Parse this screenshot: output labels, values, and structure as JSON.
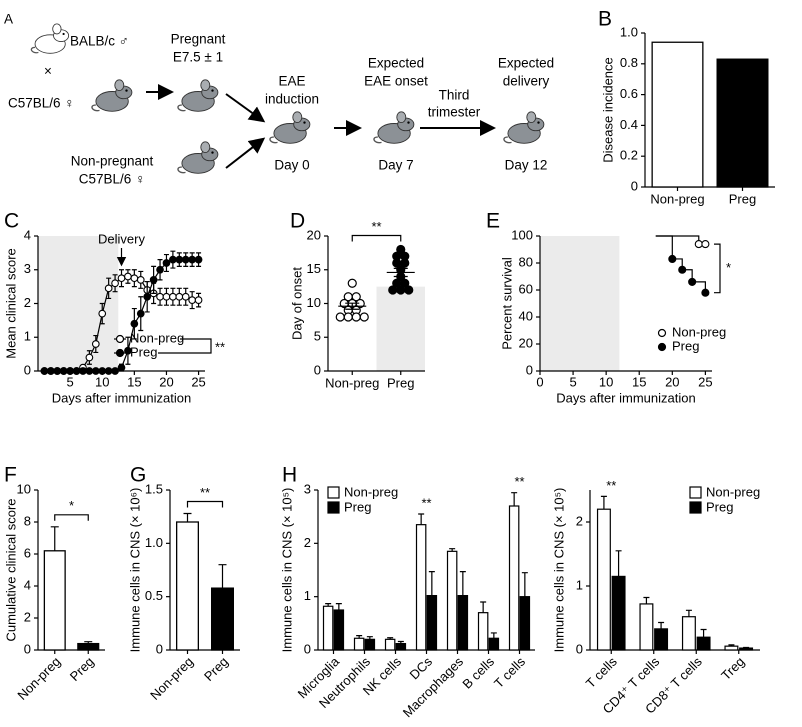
{
  "diagram": {
    "panel": "A",
    "balb": "BALB/c ♂",
    "cross": "×",
    "c57": "C57BL/6 ♀",
    "pregnant": [
      "Pregnant",
      "E7.5 ± 1"
    ],
    "nonpregnant": [
      "Non-pregnant",
      "C57BL/6 ♀"
    ],
    "induction": [
      "EAE",
      "induction"
    ],
    "day0": "Day 0",
    "onset": [
      "Expected",
      "EAE onset"
    ],
    "day7": "Day 7",
    "trimester": [
      "Third",
      "trimester"
    ],
    "delivery": [
      "Expected",
      "delivery"
    ],
    "day12": "Day 12"
  },
  "chart_data": [
    {
      "type": "bar",
      "panel": "B",
      "ylabel": "Disease incidence",
      "categories": [
        "Non-preg",
        "Preg"
      ],
      "values": [
        0.94,
        0.83
      ],
      "colors": [
        "#ffffff",
        "#000000"
      ],
      "ylim": [
        0,
        1
      ],
      "yticks": [
        0,
        0.2,
        0.4,
        0.6,
        0.8,
        {
          "value": 1,
          "label": "1.0"
        }
      ]
    },
    {
      "type": "line",
      "panel": "C",
      "ylabel": "Mean clinical score",
      "xlabel": "Days after immunization",
      "x": [
        1,
        2,
        3,
        4,
        5,
        6,
        7,
        8,
        9,
        10,
        11,
        12,
        13,
        14,
        15,
        16,
        17,
        18,
        19,
        20,
        21,
        22,
        23,
        24,
        25
      ],
      "series": [
        {
          "name": "Non-preg",
          "color": "#ffffff",
          "values": [
            0,
            0,
            0,
            0,
            0,
            0,
            0.1,
            0.4,
            0.8,
            1.7,
            2.45,
            2.6,
            2.75,
            2.8,
            2.75,
            2.7,
            2.4,
            2.3,
            2.2,
            2.2,
            2.2,
            2.2,
            2.2,
            2.1,
            2.1
          ],
          "errors": [
            0,
            0,
            0,
            0,
            0,
            0,
            0.05,
            0.2,
            0.25,
            0.3,
            0.3,
            0.25,
            0.25,
            0.2,
            0.25,
            0.25,
            0.25,
            0.3,
            0.25,
            0.25,
            0.25,
            0.25,
            0.25,
            0.25,
            0.2
          ]
        },
        {
          "name": "Preg",
          "color": "#000000",
          "values": [
            0,
            0,
            0,
            0,
            0,
            0,
            0,
            0,
            0,
            0,
            0,
            0,
            0.1,
            0.6,
            1.4,
            1.7,
            2.2,
            2.7,
            3.0,
            3.2,
            3.3,
            3.3,
            3.3,
            3.3,
            3.3
          ],
          "errors": [
            0,
            0,
            0,
            0,
            0,
            0,
            0,
            0,
            0,
            0,
            0,
            0,
            0.1,
            0.4,
            0.45,
            0.5,
            0.45,
            0.4,
            0.3,
            0.25,
            0.25,
            0.2,
            0.2,
            0.2,
            0.2
          ]
        }
      ],
      "xlim": [
        0,
        26
      ],
      "xticks": [
        5,
        10,
        15,
        20,
        25
      ],
      "ylim": [
        0,
        4
      ],
      "yticks": [
        0,
        1,
        2,
        3,
        4
      ],
      "shade_xlim": [
        0,
        12.5
      ],
      "annotation": {
        "text": "Delivery",
        "x": 13
      },
      "legend": "lower right",
      "significance": "**"
    },
    {
      "type": "dot",
      "panel": "D",
      "ylabel": "Day of onset",
      "categories": [
        "Non-preg",
        "Preg"
      ],
      "groups": [
        {
          "color": "#ffffff",
          "values": [
            13,
            11,
            11,
            10,
            10,
            10,
            9,
            9,
            8,
            8,
            8,
            8
          ],
          "mean": 9.6,
          "error": 0.45
        },
        {
          "color": "#000000",
          "values": [
            18,
            17,
            17,
            16,
            16,
            15,
            14,
            13,
            13,
            12,
            12,
            12
          ],
          "mean": 14.6,
          "error": 0.6
        }
      ],
      "ylim": [
        0,
        20
      ],
      "yticks": [
        0,
        5,
        10,
        15,
        20
      ],
      "shade_ylim": [
        0,
        12.5
      ],
      "significance": "**"
    },
    {
      "type": "step",
      "panel": "E",
      "ylabel": "Percent survival",
      "xlabel": "Days after immunization",
      "series": [
        {
          "name": "Non-preg",
          "color": "#ffffff",
          "x": [
            17.5,
            24,
            25
          ],
          "values": [
            100,
            94,
            94
          ]
        },
        {
          "name": "Preg",
          "color": "#000000",
          "x": [
            17.5,
            20,
            21.5,
            23,
            25
          ],
          "values": [
            100,
            83,
            75,
            66,
            58
          ]
        }
      ],
      "xlim": [
        0,
        26
      ],
      "xticks": [
        0,
        5,
        10,
        15,
        20,
        25
      ],
      "ylim": [
        0,
        100
      ],
      "yticks": [
        0,
        20,
        40,
        60,
        80,
        100
      ],
      "shade_xlim": [
        0,
        12
      ],
      "legend": "lower right",
      "significance": "*"
    },
    {
      "type": "bar",
      "panel": "F",
      "ylabel": "Cumulative clinical score",
      "categories": [
        "Non-preg",
        "Preg"
      ],
      "values": [
        6.2,
        0.4
      ],
      "errors": [
        1.5,
        0.12
      ],
      "colors": [
        "#ffffff",
        "#000000"
      ],
      "ylim": [
        0,
        10
      ],
      "yticks": [
        0,
        2,
        4,
        6,
        8,
        10
      ],
      "significance": "*"
    },
    {
      "type": "bar",
      "panel": "G",
      "ylabel": "Immune cells in CNS (× 10⁶)",
      "categories": [
        "Non-preg",
        "Preg"
      ],
      "values": [
        1.2,
        0.58
      ],
      "errors": [
        0.08,
        0.22
      ],
      "colors": [
        "#ffffff",
        "#000000"
      ],
      "ylim": [
        0,
        1.5
      ],
      "yticks": [
        0,
        0.5,
        {
          "value": 1,
          "label": "1.0"
        },
        1.5
      ],
      "significance": "**"
    },
    {
      "type": "grouped_bar",
      "panel": "H",
      "ylabel": "Immune cells in CNS (× 10⁵)",
      "categories": [
        "Microglia",
        "Neutrophils",
        "NK cells",
        "DCs",
        "Macrophages",
        "B cells",
        "T cells"
      ],
      "series": [
        {
          "name": "Non-preg",
          "color": "#ffffff",
          "values": [
            0.82,
            0.22,
            0.2,
            2.35,
            1.85,
            0.7,
            2.7
          ],
          "errors": [
            0.05,
            0.05,
            0.03,
            0.2,
            0.05,
            0.2,
            0.25
          ]
        },
        {
          "name": "Preg",
          "color": "#000000",
          "values": [
            0.75,
            0.2,
            0.12,
            1.02,
            1.02,
            0.22,
            1.0
          ],
          "errors": [
            0.12,
            0.05,
            0.04,
            0.45,
            0.45,
            0.1,
            0.45
          ]
        }
      ],
      "ylim": [
        0,
        3
      ],
      "yticks": [
        0,
        1,
        2,
        3
      ],
      "legend": "upper left",
      "annotations": [
        "**",
        "**"
      ]
    },
    {
      "type": "grouped_bar",
      "ylabel": "Immune cells in CNS (× 10⁵)",
      "categories": [
        "T cells",
        "CD4⁺ T cells",
        "CD8⁺ T cells",
        "Treg"
      ],
      "series": [
        {
          "name": "Non-preg",
          "color": "#ffffff",
          "values": [
            2.2,
            0.72,
            0.52,
            0.06
          ],
          "errors": [
            0.2,
            0.1,
            0.1,
            0.02
          ]
        },
        {
          "name": "Preg",
          "color": "#000000",
          "values": [
            1.15,
            0.33,
            0.2,
            0.03
          ],
          "errors": [
            0.4,
            0.1,
            0.12,
            0.01
          ]
        }
      ],
      "ylim": [
        0,
        2.5
      ],
      "yticks": [
        0,
        1,
        2
      ],
      "legend": "upper right",
      "annotations": [
        "**"
      ]
    }
  ]
}
